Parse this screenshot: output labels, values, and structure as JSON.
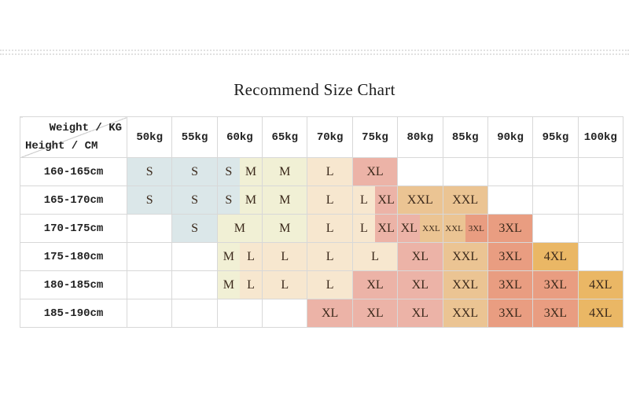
{
  "page_title": "Recommend Size Chart",
  "chart_data": {
    "type": "table",
    "title": "Recommend Size Chart",
    "col_header_label": "Weight / KG",
    "row_header_label": "Height / CM",
    "columns": [
      "50kg",
      "55kg",
      "60kg",
      "65kg",
      "70kg",
      "75kg",
      "80kg",
      "85kg",
      "90kg",
      "95kg",
      "100kg"
    ],
    "rows": [
      "160-165cm",
      "165-170cm",
      "170-175cm",
      "175-180cm",
      "180-185cm",
      "185-190cm"
    ],
    "matrix": [
      [
        "S",
        "S",
        "S/M",
        "M",
        "L",
        "XL",
        "",
        "",
        "",
        "",
        ""
      ],
      [
        "S",
        "S",
        "S/M",
        "M",
        "L",
        "L/XL",
        "XXL",
        "XXL",
        "",
        "",
        ""
      ],
      [
        "",
        "S",
        "M",
        "M",
        "L",
        "L/XL",
        "XL/XXL",
        "XXL/3XL",
        "3XL",
        "",
        ""
      ],
      [
        "",
        "",
        "M/L",
        "L",
        "L",
        "L",
        "XL",
        "XXL",
        "3XL",
        "4XL",
        ""
      ],
      [
        "",
        "",
        "M/L",
        "L",
        "L",
        "XL",
        "XL",
        "XXL",
        "3XL",
        "3XL",
        "4XL"
      ],
      [
        "",
        "",
        "",
        "",
        "XL",
        "XL",
        "XL",
        "XXL",
        "3XL",
        "3XL",
        "4XL"
      ]
    ],
    "size_colors": {
      "S": "#dbe7e9",
      "M": "#f1f0d5",
      "L": "#f7e7cf",
      "XL": "#ecb3a7",
      "XXL": "#ebc493",
      "3XL": "#e99d81",
      "4XL": "#eab765"
    },
    "grid_color": "#d8d8d8",
    "legend_position": "none",
    "grid": true
  }
}
